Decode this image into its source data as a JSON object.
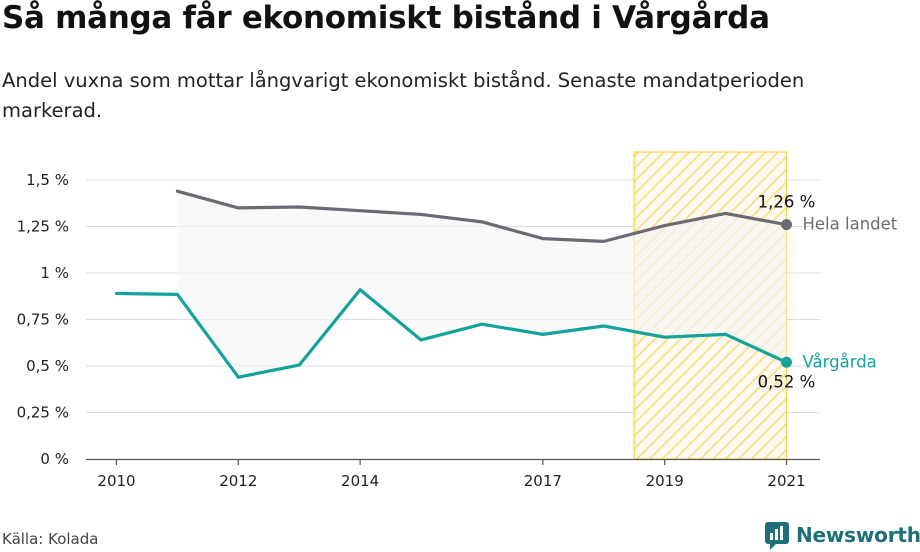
{
  "title": "Så många får ekonomiskt bistånd i Vårgårda",
  "subtitle": "Andel vuxna som mottar långvarigt ekonomiskt bistånd. Senaste mandatperioden markerad.",
  "source": "Källa: Kolada",
  "brand": {
    "name": "Newsworthy",
    "icon": "newsworthy-logo-icon"
  },
  "colors": {
    "national": "#6b6b73",
    "local": "#14a39a",
    "highlight": "#f5c518",
    "grid": "#dddddd",
    "band_fill": "#f6f6f6"
  },
  "chart_data": {
    "type": "line",
    "title": "Så många får ekonomiskt bistånd i Vårgårda",
    "x": [
      2010,
      2011,
      2012,
      2013,
      2014,
      2015,
      2016,
      2017,
      2018,
      2019,
      2020,
      2021
    ],
    "x_ticks": [
      2010,
      2012,
      2014,
      2017,
      2019,
      2021
    ],
    "x_tick_labels": [
      "2010",
      "2012",
      "2014",
      "2017",
      "2019",
      "2021"
    ],
    "ylim": [
      0,
      1.5
    ],
    "y_ticks": [
      0,
      0.25,
      0.5,
      0.75,
      1,
      1.25,
      1.5
    ],
    "y_tick_labels": [
      "0 %",
      "0,25 %",
      "0,5 %",
      "0,75 %",
      "1 %",
      "1,25 %",
      "1,5 %"
    ],
    "grid": true,
    "highlight_period": [
      2018.5,
      2021
    ],
    "series": [
      {
        "name": "Hela landet",
        "color": "#6b6b73",
        "values": [
          null,
          1.44,
          1.35,
          1.355,
          1.335,
          1.315,
          1.275,
          1.185,
          1.17,
          1.255,
          1.32,
          1.26
        ],
        "end_label": "1,26 %"
      },
      {
        "name": "Vårgårda",
        "color": "#14a39a",
        "values": [
          0.89,
          0.885,
          0.44,
          0.505,
          0.91,
          0.64,
          0.725,
          0.67,
          0.715,
          0.655,
          0.67,
          0.52
        ],
        "end_label": "0,52 %"
      }
    ]
  }
}
